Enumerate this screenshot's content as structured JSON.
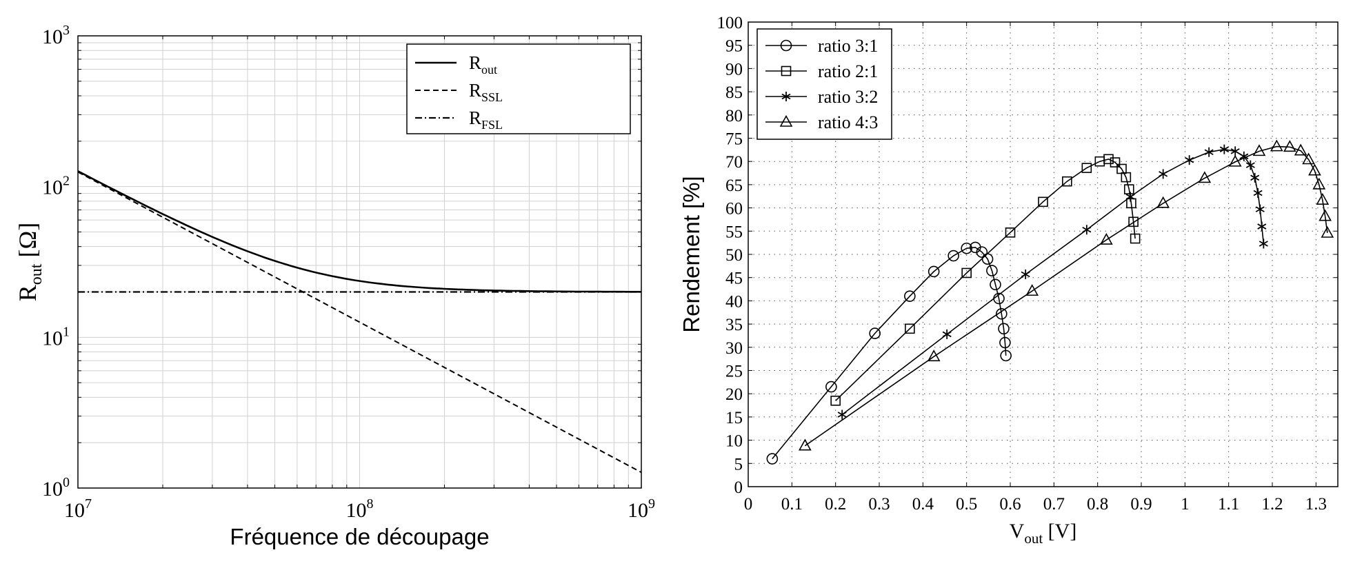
{
  "chart_data": [
    {
      "type": "line",
      "xscale": "log",
      "yscale": "log",
      "xlim": [
        10000000,
        1000000000
      ],
      "ylim": [
        1,
        1000
      ],
      "grid": true,
      "legend_position": "top-right",
      "xlabel": "Fréquence de découpage",
      "ylabel": {
        "main": "R",
        "sub": "out",
        "unit": " [Ω]"
      },
      "x_ticks": [
        {
          "value": 10000000,
          "base": "10",
          "exp": "7"
        },
        {
          "value": 100000000,
          "base": "10",
          "exp": "8"
        },
        {
          "value": 1000000000,
          "base": "10",
          "exp": "9"
        }
      ],
      "y_ticks": [
        {
          "value": 1,
          "base": "10",
          "exp": "0"
        },
        {
          "value": 10,
          "base": "10",
          "exp": "1"
        },
        {
          "value": 100,
          "base": "10",
          "exp": "2"
        },
        {
          "value": 1000,
          "base": "10",
          "exp": "3"
        }
      ],
      "series": [
        {
          "name": "R",
          "sub": "out",
          "style": "solid",
          "x": [
            10000000,
            20000000,
            50000000,
            100000000,
            200000000,
            500000000,
            1000000000
          ],
          "y": [
            127,
            68,
            33,
            24.5,
            21.3,
            20.2,
            20
          ]
        },
        {
          "name": "R",
          "sub": "SSL",
          "style": "dashed",
          "x": [
            10000000,
            1000000000
          ],
          "y": [
            125,
            1.27
          ]
        },
        {
          "name": "R",
          "sub": "FSL",
          "style": "dashdot",
          "x": [
            10000000,
            1000000000
          ],
          "y": [
            20,
            20
          ]
        }
      ]
    },
    {
      "type": "line",
      "xlim": [
        0,
        1.35
      ],
      "ylim": [
        0,
        100
      ],
      "grid": true,
      "legend_position": "top-left",
      "xlabel": {
        "main": "V",
        "sub": "out",
        "unit": " [V]"
      },
      "ylabel": "Rendement [%]",
      "x_ticks": [
        "0",
        "0.1",
        "0.2",
        "0.3",
        "0.4",
        "0.5",
        "0.6",
        "0.7",
        "0.8",
        "0.9",
        "1",
        "1.1",
        "1.2",
        "1.3"
      ],
      "y_ticks": [
        "0",
        "5",
        "10",
        "15",
        "20",
        "25",
        "30",
        "35",
        "40",
        "45",
        "50",
        "55",
        "60",
        "65",
        "70",
        "75",
        "80",
        "85",
        "90",
        "95",
        "100"
      ],
      "series": [
        {
          "name": "ratio 3:1",
          "marker": "circle",
          "x": [
            0.055,
            0.19,
            0.29,
            0.37,
            0.425,
            0.47,
            0.5,
            0.52,
            0.535,
            0.548,
            0.558,
            0.566,
            0.574,
            0.58,
            0.585,
            0.588,
            0.59
          ],
          "y": [
            6,
            21.5,
            33,
            41,
            46.3,
            49.7,
            51.3,
            51.5,
            50.5,
            49,
            46.5,
            43.5,
            40.5,
            37.2,
            34,
            31,
            28.2
          ]
        },
        {
          "name": "ratio 2:1",
          "marker": "square",
          "x": [
            0.2,
            0.37,
            0.5,
            0.6,
            0.675,
            0.73,
            0.775,
            0.805,
            0.825,
            0.84,
            0.855,
            0.865,
            0.872,
            0.877,
            0.882,
            0.886
          ],
          "y": [
            18.5,
            34,
            46,
            54.7,
            61.3,
            65.7,
            68.6,
            70,
            70.5,
            69.8,
            68.4,
            66.6,
            64,
            61,
            57,
            53.4
          ]
        },
        {
          "name": "ratio 3:2",
          "marker": "star",
          "x": [
            0.215,
            0.455,
            0.635,
            0.775,
            0.875,
            0.95,
            1.01,
            1.055,
            1.09,
            1.115,
            1.135,
            1.15,
            1.16,
            1.167,
            1.172,
            1.176,
            1.18
          ],
          "y": [
            15.5,
            32.8,
            45.7,
            55.3,
            62.4,
            67.3,
            70.3,
            72,
            72.6,
            72.2,
            71.1,
            69.2,
            66.5,
            63.2,
            59.7,
            56,
            52.3
          ]
        },
        {
          "name": "ratio 4:3",
          "marker": "triangle",
          "x": [
            0.13,
            0.425,
            0.65,
            0.82,
            0.95,
            1.045,
            1.115,
            1.17,
            1.21,
            1.24,
            1.265,
            1.283,
            1.297,
            1.307,
            1.315,
            1.321,
            1.326
          ],
          "y": [
            8.8,
            28,
            42.1,
            53.1,
            61,
            66.4,
            69.9,
            72.2,
            73.2,
            73.1,
            72.3,
            70.4,
            68,
            65,
            61.7,
            58.2,
            54.6
          ]
        }
      ]
    }
  ]
}
